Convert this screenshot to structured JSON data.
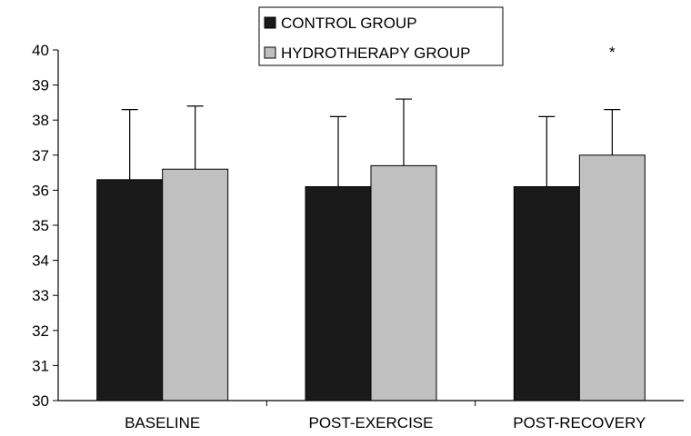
{
  "chart_data": {
    "type": "bar",
    "categories": [
      "BASELINE",
      "POST-EXERCISE",
      "POST-RECOVERY"
    ],
    "series": [
      {
        "name": "CONTROL GROUP",
        "color": "#1a1a1a",
        "values": [
          36.3,
          36.1,
          36.1
        ],
        "error_upper": [
          38.3,
          38.1,
          38.1
        ]
      },
      {
        "name": "HYDROTHERAPY GROUP",
        "color": "#c0c0c0",
        "values": [
          36.6,
          36.7,
          37.0
        ],
        "error_upper": [
          38.4,
          38.6,
          38.3
        ]
      }
    ],
    "ylim": [
      30,
      40
    ],
    "yticks": [
      "30",
      "31",
      "32",
      "33",
      "34",
      "35",
      "36",
      "37",
      "38",
      "39",
      "40"
    ],
    "title": "",
    "xlabel": "",
    "ylabel": "",
    "grid": false,
    "legend_position": "top-center",
    "annotations": [
      {
        "text": "*",
        "category_index": 2
      }
    ]
  }
}
